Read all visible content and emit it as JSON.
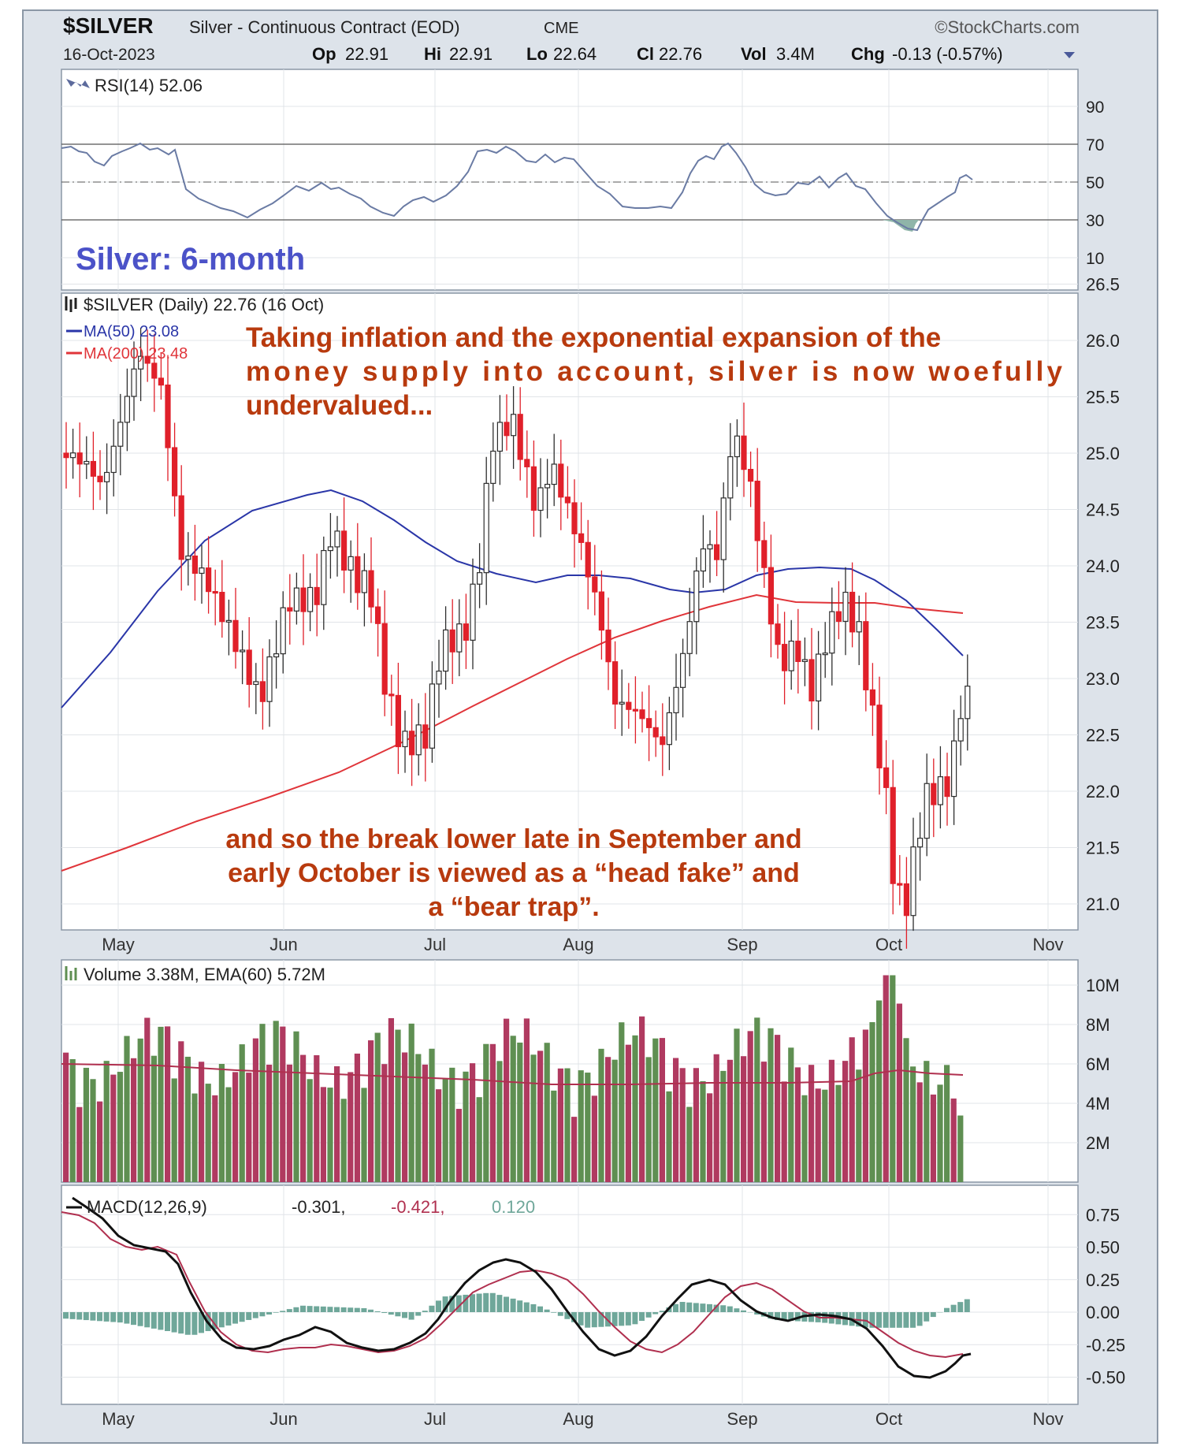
{
  "header": {
    "symbol": "$SILVER",
    "name": "Silver - Continuous Contract (EOD)",
    "exchange": "CME",
    "brand": "©StockCharts.com",
    "date": "16-Oct-2023",
    "op_label": "Op",
    "op": "22.91",
    "hi_label": "Hi",
    "hi": "22.91",
    "lo_label": "Lo",
    "lo": "22.64",
    "cl_label": "Cl",
    "cl": "22.76",
    "vol_label": "Vol",
    "vol": "3.4M",
    "chg_label": "Chg",
    "chg": "-0.13 (-0.57%)"
  },
  "rsi_panel": {
    "legend": "RSI(14) 52.06",
    "period_label": "Silver: 6-month",
    "ticks": [
      "90",
      "70",
      "50",
      "30",
      "10"
    ],
    "tick_values": [
      90,
      70,
      50,
      30,
      10
    ]
  },
  "price_panel": {
    "legend": "$SILVER (Daily) 22.76 (16 Oct)",
    "ma50": "MA(50) 23.08",
    "ma200": "MA(200) 23.48",
    "annotation1": [
      "Taking inflation and the exponential expansion of the",
      "money supply into account, silver is now woefully",
      "undervalued..."
    ],
    "annotation2": [
      "and so the break lower late in September and",
      "early October is viewed as a “head fake” and",
      "a “bear trap”."
    ],
    "ticks": [
      "26.5",
      "26.0",
      "25.5",
      "25.0",
      "24.5",
      "24.0",
      "23.5",
      "23.0",
      "22.5",
      "22.0",
      "21.5",
      "21.0"
    ],
    "tick_values": [
      26.5,
      26.0,
      25.5,
      25.0,
      24.5,
      24.0,
      23.5,
      23.0,
      22.5,
      22.0,
      21.5,
      21.0
    ],
    "months": [
      "May",
      "Jun",
      "Jul",
      "Aug",
      "Sep",
      "Oct",
      "Nov"
    ]
  },
  "volume_panel": {
    "legend": "Volume 3.38M, EMA(60) 5.72M",
    "ticks": [
      "10M",
      "8M",
      "6M",
      "4M",
      "2M"
    ],
    "tick_values": [
      10,
      8,
      6,
      4,
      2
    ]
  },
  "macd_panel": {
    "legend_prefix": "MACD(12,26,9)",
    "macd": "-0.301,",
    "signal": "-0.421,",
    "hist": "0.120",
    "ticks": [
      "0.75",
      "0.50",
      "0.25",
      "0.00",
      "-0.25",
      "-0.50"
    ],
    "tick_values": [
      0.75,
      0.5,
      0.25,
      0.0,
      -0.25,
      -0.5
    ],
    "months": [
      "May",
      "Jun",
      "Jul",
      "Aug",
      "Sep",
      "Oct",
      "Nov"
    ]
  },
  "colors": {
    "up": "#2e2e2e",
    "down": "#e0202a",
    "ma50": "#2a36a8",
    "ma200": "#e0353a",
    "vol_up": "#5f8f52",
    "vol_down": "#b03a60",
    "macd": "#111111",
    "signal": "#b0304f",
    "hist": "#6fa79a",
    "annotation": "#b83a0e",
    "period": "#4b52c8"
  },
  "chart_data": {
    "type": "line",
    "title": "$SILVER Silver - Continuous Contract (EOD) CME",
    "x_range": [
      "2023-04-17",
      "2023-10-16"
    ],
    "price_ylim": [
      20.8,
      26.6
    ],
    "series": [
      {
        "name": "$SILVER (Daily)",
        "x": [
          "2023-04-17",
          "2023-05-05",
          "2023-05-12",
          "2023-05-26",
          "2023-06-09",
          "2023-06-23",
          "2023-07-14",
          "2023-07-27",
          "2023-08-14",
          "2023-08-22",
          "2023-08-30",
          "2023-09-06",
          "2023-09-22",
          "2023-10-03",
          "2023-10-13",
          "2023-10-16"
        ],
        "values": [
          25.0,
          25.9,
          24.0,
          22.8,
          24.3,
          22.2,
          25.1,
          24.2,
          22.3,
          24.2,
          25.2,
          23.3,
          23.8,
          21.0,
          22.9,
          22.76
        ]
      },
      {
        "name": "MA(50)",
        "x": [
          "2023-04-17",
          "2023-05-15",
          "2023-06-09",
          "2023-07-05",
          "2023-07-31",
          "2023-08-21",
          "2023-09-08",
          "2023-09-22",
          "2023-10-16"
        ],
        "values": [
          22.6,
          24.2,
          24.6,
          24.1,
          23.8,
          23.6,
          23.85,
          23.9,
          23.08
        ]
      },
      {
        "name": "MA(200)",
        "x": [
          "2023-04-17",
          "2023-06-01",
          "2023-06-23",
          "2023-07-20",
          "2023-08-17",
          "2023-09-08",
          "2023-09-25",
          "2023-10-16"
        ],
        "values": [
          21.3,
          22.0,
          22.4,
          22.9,
          23.3,
          23.55,
          23.6,
          23.48
        ]
      }
    ],
    "rsi_range": [
      0,
      100
    ],
    "rsi_last": 52.06,
    "volume_last_m": 3.38,
    "volume_ema60_m": 5.72,
    "macd_last": -0.301,
    "signal_last": -0.421,
    "hist_last": 0.12
  }
}
